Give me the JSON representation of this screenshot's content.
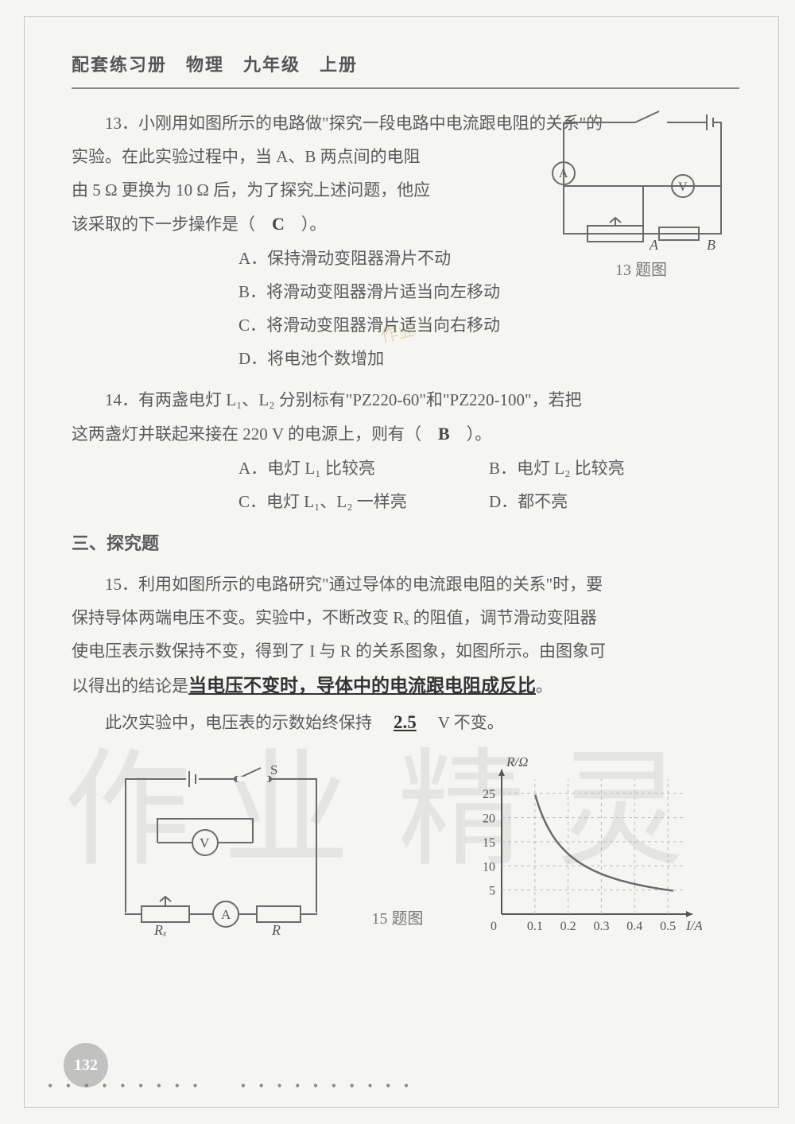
{
  "header": {
    "title": "配套练习册　物理　九年级　上册"
  },
  "q13": {
    "line1": "13．小刚用如图所示的电路做\"探究一段电路中电流跟电阻的关系\"的",
    "line2_a": "实验。在此实验过程中，当 A、B 两点间的电阻",
    "line3_a": "由 5 Ω 更换为 10 Ω 后，为了探究上述问题，他应",
    "line4_a": "该采取的下一步操作是（　",
    "line4_ans": "C",
    "line4_b": "　）。",
    "optA": "A．保持滑动变阻器滑片不动",
    "optB": "B．将滑动变阻器滑片适当向左移动",
    "optC": "C．将滑动变阻器滑片适当向右移动",
    "optD": "D．将电池个数增加",
    "caption": "13 题图",
    "circuit": {
      "stroke": "#6a6a6a",
      "labelA": "A",
      "labelB": "B"
    }
  },
  "q14": {
    "line1_a": "14．有两盏电灯 L₁、L₂ 分别标有\"PZ220-60\"和\"PZ220-100\"，若把",
    "line2_a": "这两盏灯并联起来接在 220 V 的电源上，则有（　",
    "line2_ans": "B",
    "line2_b": "　）。",
    "optA": "A．电灯 L₁ 比较亮",
    "optB": "B．电灯 L₂ 比较亮",
    "optC": "C．电灯 L₁、L₂ 一样亮",
    "optD": "D．都不亮"
  },
  "section3": {
    "title": "三、探究题"
  },
  "q15": {
    "line1": "15．利用如图所示的电路研究\"通过导体的电流跟电阻的关系\"时，要",
    "line2": "保持导体两端电压不变。实验中，不断改变 Rₓ 的阻值，调节滑动变阻器",
    "line3": "使电压表示数保持不变，得到了 I 与 R 的关系图象，如图所示。由图象可",
    "line4_a": "以得出的结论是",
    "line4_ans": "当电压不变时，导体中的电流跟电阻成反比",
    "line4_b": "。",
    "line5_a": "此次实验中，电压表的示数始终保持　",
    "line5_ans": "2.5",
    "line5_b": "　V 不变。",
    "caption": "15 题图",
    "circuit": {
      "stroke": "#6a6a6a",
      "labelS": "S",
      "labelV": "V",
      "labelA": "A",
      "labelRx": "Rₓ",
      "labelR": "R"
    },
    "chart": {
      "ylabel": "R/Ω",
      "xlabel": "I/A",
      "yticks": [
        "5",
        "10",
        "15",
        "20",
        "25"
      ],
      "xticks": [
        "0.1",
        "0.2",
        "0.3",
        "0.4",
        "0.5"
      ],
      "xlim": [
        0,
        0.55
      ],
      "ylim": [
        0,
        28
      ],
      "curve_color": "#6a6a6a",
      "grid_color": "#bbb",
      "axis_color": "#555",
      "bg": "#f5f5f3",
      "curve_points": [
        [
          0.1,
          25
        ],
        [
          0.125,
          20
        ],
        [
          0.167,
          15
        ],
        [
          0.25,
          10
        ],
        [
          0.5,
          5
        ]
      ]
    }
  },
  "pageNumber": "132",
  "dots": "• • • • • • • • •　　• • • • • • • • • •",
  "watermark": {
    "a": "作业",
    "b": "精灵",
    "small": "作业"
  }
}
